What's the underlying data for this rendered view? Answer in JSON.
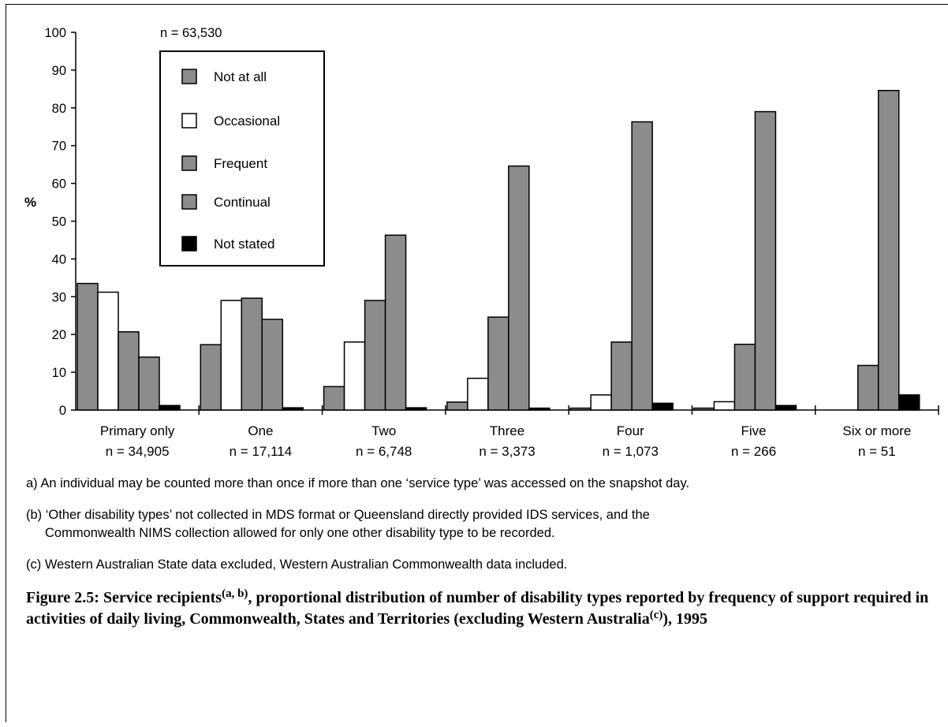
{
  "chart_data": {
    "type": "bar",
    "title": "n = 63,530",
    "ylabel": "%",
    "xlabel": "",
    "ylim": [
      0,
      100
    ],
    "yticks": [
      0,
      10,
      20,
      30,
      40,
      50,
      60,
      70,
      80,
      90,
      100
    ],
    "grid": false,
    "legend_position": "top-left",
    "categories": [
      "Primary only",
      "One",
      "Two",
      "Three",
      "Four",
      "Five",
      "Six or more"
    ],
    "category_counts": [
      "n = 34,905",
      "n = 17,114",
      "n = 6,748",
      "n = 3,373",
      "n = 1,073",
      "n = 266",
      "n = 51"
    ],
    "series": [
      {
        "name": "Not at all",
        "color": "#8c8c8c",
        "values": [
          33.5,
          17.3,
          6.2,
          2.1,
          0.5,
          0.5,
          null
        ]
      },
      {
        "name": "Occasional",
        "color": "#ffffff",
        "values": [
          31.2,
          29.0,
          18.0,
          8.4,
          4.0,
          2.2,
          null
        ]
      },
      {
        "name": "Frequent",
        "color": "#8c8c8c",
        "values": [
          20.7,
          29.6,
          29.0,
          24.6,
          18.0,
          17.4,
          11.8
        ]
      },
      {
        "name": "Continual",
        "color": "#8c8c8c",
        "values": [
          14.0,
          24.0,
          46.3,
          64.6,
          76.3,
          79.0,
          84.6
        ]
      },
      {
        "name": "Not stated",
        "color": "#000000",
        "values": [
          1.2,
          0.6,
          0.6,
          0.5,
          1.8,
          1.2,
          4.0
        ]
      }
    ]
  },
  "notes": {
    "a": "a) An individual may be counted more than once if more than one ‘service type’ was accessed on the snapshot day.",
    "b_line1": "(b) ‘Other disability types’ not collected in MDS format or Queensland directly provided IDS services, and the",
    "b_line2": "Commonwealth NIMS collection allowed for only one other disability type to be recorded.",
    "c": "(c) Western Australian State data excluded, Western Australian Commonwealth data included."
  },
  "caption": {
    "part1": "Figure 2.5: Service recipients",
    "sup1": "(a, b)",
    "part2": ", proportional distribution of number of disability types reported by frequency of support required in activities of daily living, Commonwealth, States and Territories (excluding Western Australia",
    "sup2": "(c)",
    "part3": "), 1995"
  }
}
